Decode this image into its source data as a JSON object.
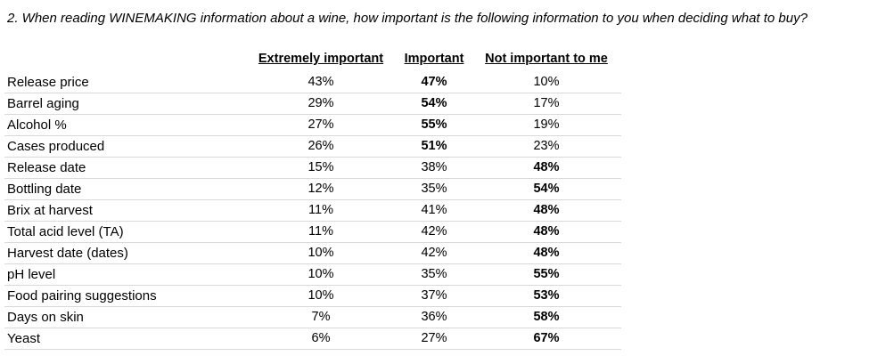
{
  "question": "2. When reading WINEMAKING information about a wine, how important is the following information to you when deciding what to buy?",
  "table": {
    "columns": [
      "Extremely important",
      "Important",
      "Not important to me"
    ],
    "rows": [
      [
        "Release price",
        "43%",
        "47%",
        "10%"
      ],
      [
        "Barrel aging",
        "29%",
        "54%",
        "17%"
      ],
      [
        "Alcohol %",
        "27%",
        "55%",
        "19%"
      ],
      [
        "Cases produced",
        "26%",
        "51%",
        "23%"
      ],
      [
        "Release date",
        "15%",
        "38%",
        "48%"
      ],
      [
        "Bottling date",
        "12%",
        "35%",
        "54%"
      ],
      [
        "Brix at harvest",
        "11%",
        "41%",
        "48%"
      ],
      [
        "Total acid level (TA)",
        "11%",
        "42%",
        "48%"
      ],
      [
        "Harvest date (dates)",
        "10%",
        "42%",
        "48%"
      ],
      [
        "pH level",
        "10%",
        "35%",
        "55%"
      ],
      [
        "Food pairing suggestions",
        "10%",
        "37%",
        "53%"
      ],
      [
        "Days on skin",
        "7%",
        "36%",
        "58%"
      ],
      [
        "Yeast",
        "6%",
        "27%",
        "67%"
      ]
    ]
  }
}
